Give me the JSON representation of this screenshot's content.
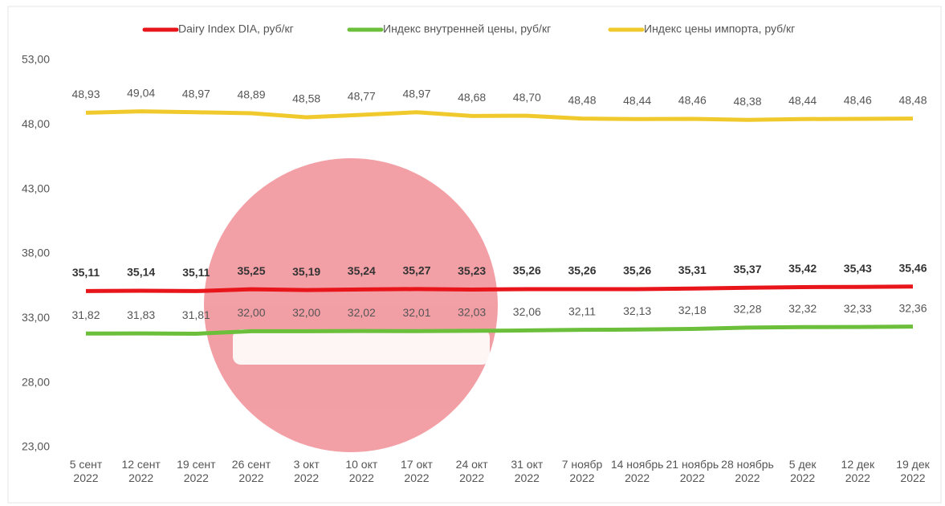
{
  "chart_data": {
    "type": "line",
    "categories": [
      "5 сент 2022",
      "12 сент 2022",
      "19 сент 2022",
      "26 сент 2022",
      "3 окт 2022",
      "10 окт 2022",
      "17 окт 2022",
      "24 окт 2022",
      "31 окт 2022",
      "7 ноябр 2022",
      "14 ноябрь 2022",
      "21 ноябрь 2022",
      "28 ноябрь 2022",
      "5 дек 2022",
      "12 дек 2022",
      "19 дек 2022"
    ],
    "series": [
      {
        "name": "Dairy Index DIA,  руб/кг",
        "color": "#e8151b",
        "values": [
          35.11,
          35.14,
          35.11,
          35.25,
          35.19,
          35.24,
          35.27,
          35.23,
          35.26,
          35.26,
          35.26,
          35.31,
          35.37,
          35.42,
          35.43,
          35.46
        ],
        "value_labels": [
          "35,11",
          "35,14",
          "35,11",
          "35,25",
          "35,19",
          "35,24",
          "35,27",
          "35,23",
          "35,26",
          "35,26",
          "35,26",
          "35,31",
          "35,37",
          "35,42",
          "35,43",
          "35,46"
        ]
      },
      {
        "name": "Индекс внутренней цены, руб/кг",
        "color": "#6cbf3a",
        "values": [
          31.82,
          31.83,
          31.81,
          32.0,
          32.0,
          32.02,
          32.01,
          32.03,
          32.06,
          32.11,
          32.13,
          32.18,
          32.28,
          32.32,
          32.33,
          32.36
        ],
        "value_labels": [
          "31,82",
          "31,83",
          "31,81",
          "32,00",
          "32,00",
          "32,02",
          "32,01",
          "32,03",
          "32,06",
          "32,11",
          "32,13",
          "32,18",
          "32,28",
          "32,32",
          "32,33",
          "32,36"
        ]
      },
      {
        "name": "Индекс цены импорта, руб/кг",
        "color": "#f0c92c",
        "values": [
          48.93,
          49.04,
          48.97,
          48.89,
          48.58,
          48.77,
          48.97,
          48.68,
          48.7,
          48.48,
          48.44,
          48.46,
          48.38,
          48.44,
          48.46,
          48.48
        ],
        "value_labels": [
          "48,93",
          "49,04",
          "48,97",
          "48,89",
          "48,58",
          "48,77",
          "48,97",
          "48,68",
          "48,70",
          "48,48",
          "48,44",
          "48,46",
          "48,38",
          "48,44",
          "48,46",
          "48,48"
        ]
      }
    ],
    "ylim": [
      23,
      53
    ],
    "yticks": [
      {
        "value": 23,
        "label": "23,00"
      },
      {
        "value": 28,
        "label": "28,00"
      },
      {
        "value": 33,
        "label": "33,00"
      },
      {
        "value": 38,
        "label": "38,00"
      },
      {
        "value": 43,
        "label": "43,00"
      },
      {
        "value": 48,
        "label": "48,00"
      },
      {
        "value": 53,
        "label": "53,00"
      }
    ],
    "legend": "top"
  }
}
